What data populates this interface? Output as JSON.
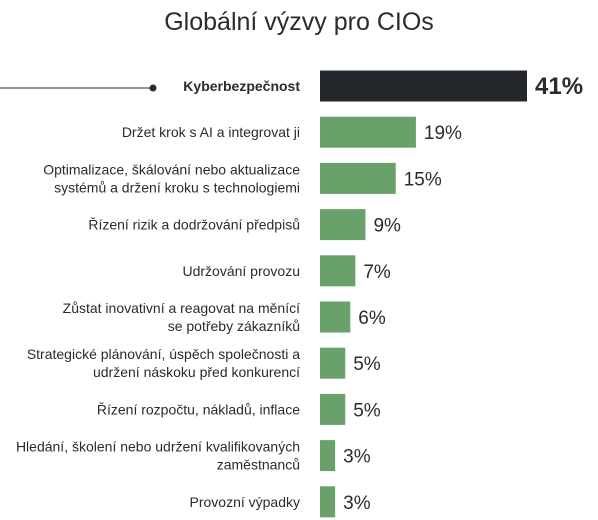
{
  "chart_data": {
    "type": "bar",
    "orientation": "horizontal",
    "title": "Globální výzvy pro CIOs",
    "categories": [
      [
        "Kyberbezpečnost"
      ],
      [
        "Držet krok s AI a integrovat ji"
      ],
      [
        "Optimalizace, škálování nebo aktualizace",
        "systémů a držení kroku s technologiemi"
      ],
      [
        "Řízení rizik a dodržování předpisů"
      ],
      [
        "Udržování provozu"
      ],
      [
        "Zůstat inovativní a reagovat na měnící",
        "se potřeby zákazníků"
      ],
      [
        "Strategické plánování, úspěch společnosti a",
        "udržení náskoku před konkurencí"
      ],
      [
        "Řízení rozpočtu, nákladů, inflace"
      ],
      [
        "Hledání, školení nebo udržení kvalifikovaných",
        "zaměstnanců"
      ],
      [
        "Provozní výpadky"
      ]
    ],
    "values": [
      41,
      19,
      15,
      9,
      7,
      6,
      5,
      5,
      3,
      3
    ],
    "value_labels": [
      "41%",
      "19%",
      "15%",
      "9%",
      "7%",
      "6%",
      "5%",
      "5%",
      "3%",
      "3%"
    ],
    "highlight_index": 0,
    "colors": {
      "highlight": "#24282c",
      "bar": "#6aa16a",
      "pointer": "#2b2b2b"
    },
    "xlabel": "",
    "ylabel": "",
    "xlim": [
      0,
      41
    ],
    "grid": false,
    "legend": "none"
  }
}
